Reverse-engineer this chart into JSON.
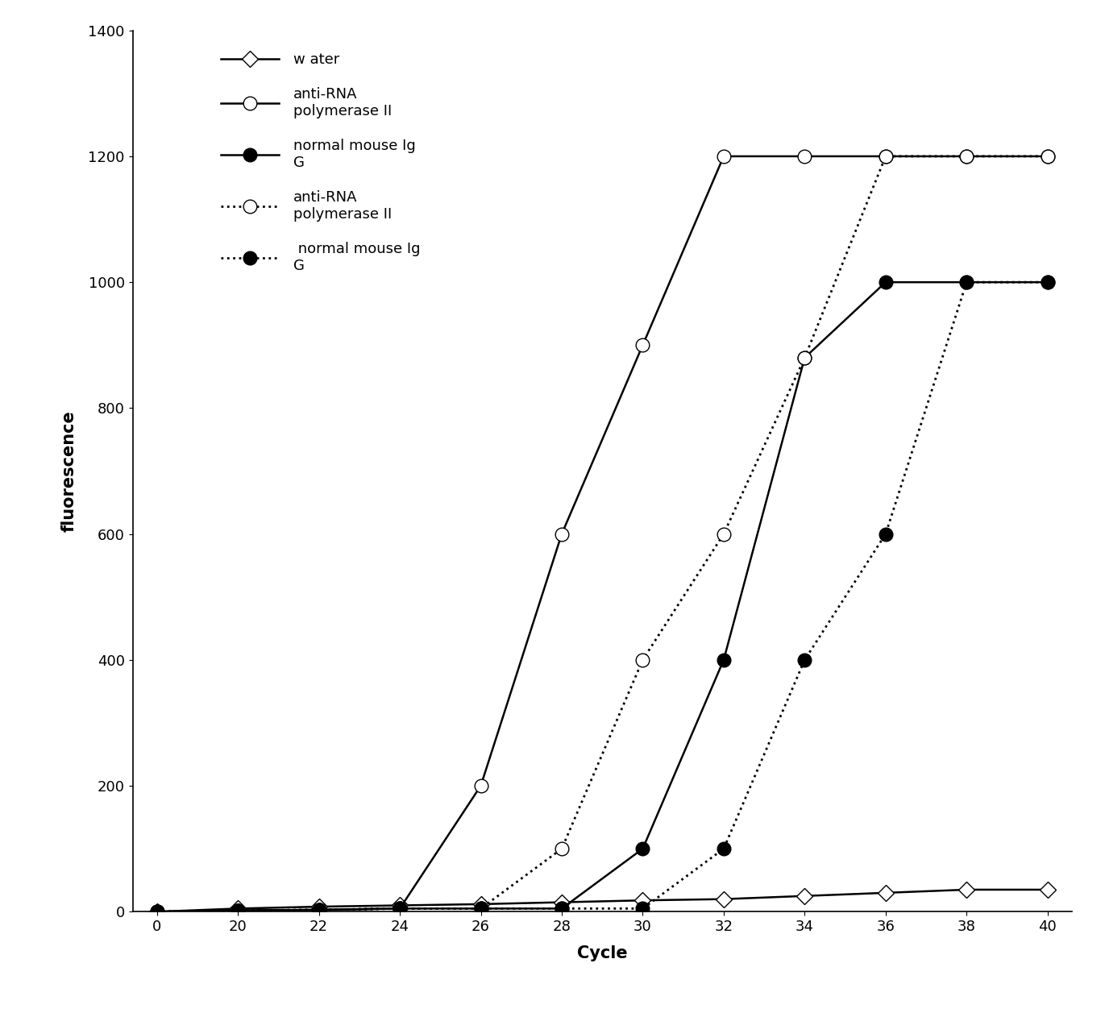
{
  "x_labels": [
    "0",
    "20",
    "22",
    "24",
    "26",
    "28",
    "30",
    "32",
    "34",
    "36",
    "38",
    "40"
  ],
  "x_numeric": [
    0,
    1,
    2,
    3,
    4,
    5,
    6,
    7,
    8,
    9,
    10,
    11
  ],
  "water": [
    0,
    5,
    8,
    10,
    12,
    15,
    18,
    20,
    25,
    30,
    35,
    35
  ],
  "anti_rna_pol_solid": [
    0,
    2,
    3,
    5,
    200,
    600,
    900,
    1200,
    1200,
    1200,
    1200,
    1200
  ],
  "normal_mouse_solid": [
    0,
    2,
    3,
    5,
    5,
    5,
    100,
    400,
    880,
    1000,
    1000,
    1000
  ],
  "anti_rna_pol_dashed": [
    0,
    2,
    3,
    5,
    5,
    100,
    400,
    600,
    880,
    1200,
    1200,
    1200
  ],
  "normal_mouse_dashed": [
    0,
    2,
    3,
    5,
    5,
    5,
    5,
    100,
    400,
    600,
    1000,
    1000
  ],
  "ylabel": "fluorescence",
  "xlabel": "Cycle",
  "ylim": [
    0,
    1400
  ],
  "yticks": [
    0,
    200,
    400,
    600,
    800,
    1000,
    1200,
    1400
  ],
  "legend_water": "w ater",
  "legend_anti_solid": "anti-RNA\npolymerase II",
  "legend_normal_solid": "normal mouse Ig\nG",
  "legend_anti_dashed": "anti-RNA\npolymerase II",
  "legend_normal_dashed": " normal mouse Ig\nG",
  "line_color": "#000000",
  "bg_color": "#ffffff",
  "marker_size_diamond": 10,
  "marker_size_circle": 12,
  "linewidth_solid": 1.8,
  "linewidth_dashed": 2.0,
  "label_fontsize": 15,
  "tick_fontsize": 13,
  "legend_fontsize": 13
}
